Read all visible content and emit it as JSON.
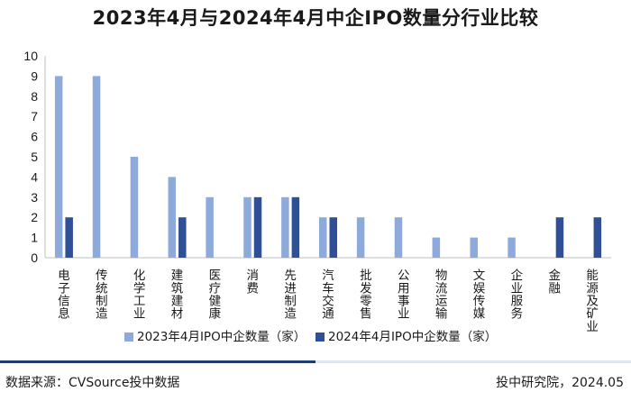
{
  "footer": {
    "source": "数据来源：CVSource投中数据",
    "credit": "投中研究院，2024.05"
  },
  "chart_data": {
    "type": "bar",
    "title": "2023年4月与2024年4月中企IPO数量分行业比较",
    "categories": [
      "电子信息",
      "传统制造",
      "化学工业",
      "建筑建材",
      "医疗健康",
      "消费",
      "先进制造",
      "汽车交通",
      "批发零售",
      "公用事业",
      "物流运输",
      "文娱传媒",
      "企业服务",
      "金融",
      "能源及矿业"
    ],
    "series": [
      {
        "name": "2023年4月IPO中企数量（家）",
        "values": [
          9,
          9,
          5,
          4,
          3,
          3,
          3,
          2,
          2,
          2,
          1,
          1,
          1,
          0,
          0
        ],
        "color": "#8eaadb"
      },
      {
        "name": "2024年4月IPO中企数量（家）",
        "values": [
          2,
          0,
          0,
          2,
          0,
          3,
          3,
          2,
          0,
          0,
          0,
          0,
          0,
          2,
          2
        ],
        "color": "#2f4f96"
      }
    ],
    "ylim": [
      0,
      10
    ],
    "yticks": [
      0,
      1,
      2,
      3,
      4,
      5,
      6,
      7,
      8,
      9,
      10
    ],
    "xlabel": "",
    "ylabel": "",
    "grid": false,
    "legend": "bottom"
  }
}
